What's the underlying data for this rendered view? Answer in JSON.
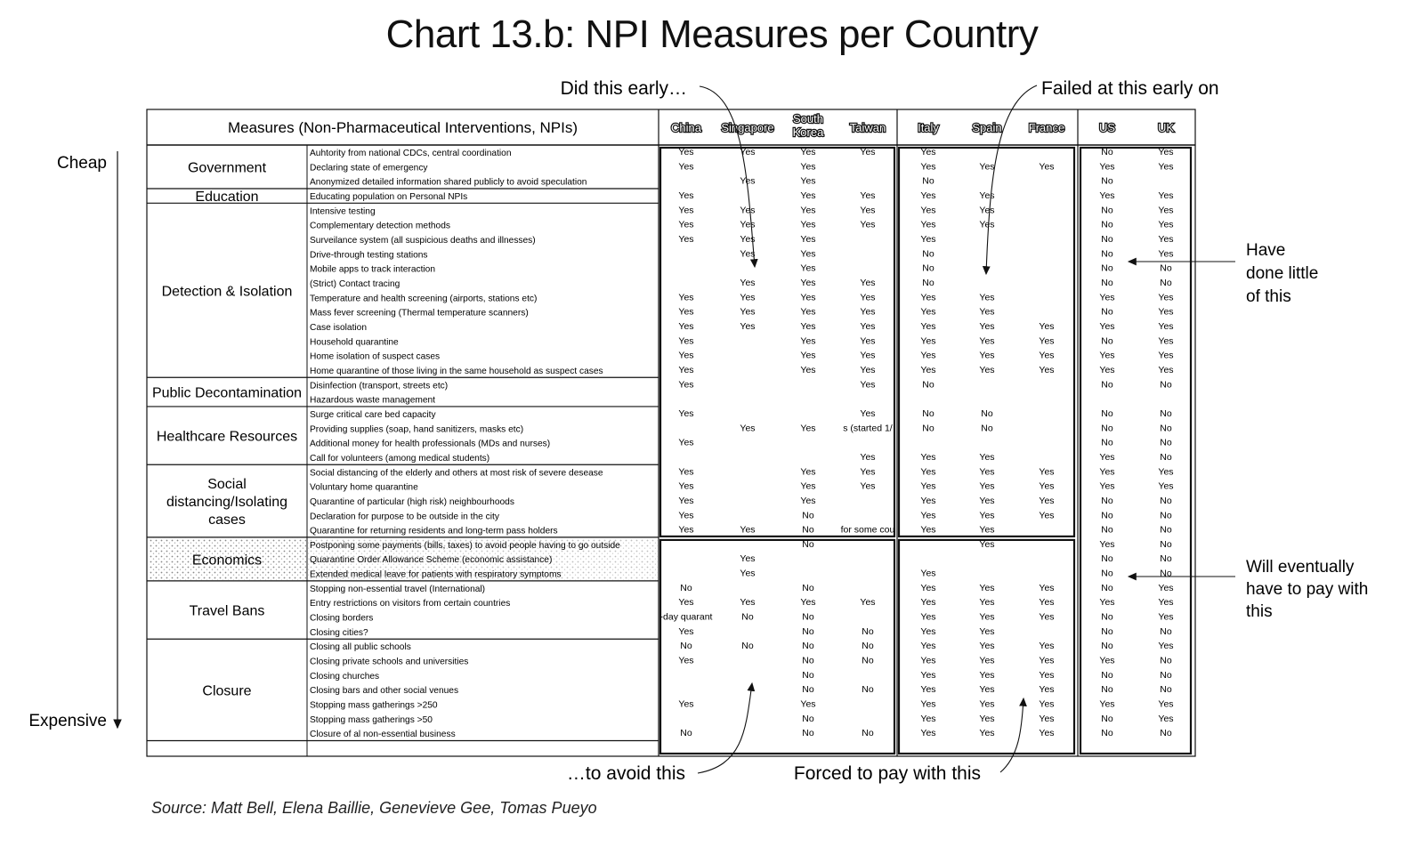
{
  "title": "Chart 13.b: NPI Measures per Country",
  "source": "Source: Matt Bell, Elena Baillie, Genevieve Gee, Tomas Pueyo",
  "axis": {
    "top": "Cheap",
    "bottom": "Expensive"
  },
  "annotations": {
    "did_early": "Did this early…",
    "failed_early": "Failed at this early on",
    "done_little": [
      "Have",
      "done little",
      "of this"
    ],
    "pay_with": [
      "Will eventually",
      "have to pay with",
      "this"
    ],
    "avoid_this": "…to avoid this",
    "forced_pay": "Forced to pay with this"
  },
  "chart_data": {
    "type": "table",
    "header_label": "Measures (Non-Pharmaceutical Interventions, NPIs)",
    "countries": [
      "China",
      "Singapore",
      "South Korea",
      "Taiwan",
      "Italy",
      "Spain",
      "France",
      "US",
      "UK"
    ],
    "groups": [
      {
        "name": "Government",
        "rows": [
          {
            "measure": "Auhtority from national CDCs, central coordination",
            "values": [
              "Yes",
              "Yes",
              "Yes",
              "Yes",
              "Yes",
              "",
              "",
              "No",
              "Yes"
            ]
          },
          {
            "measure": "Declaring state of emergency",
            "values": [
              "Yes",
              "",
              "Yes",
              "",
              "Yes",
              "Yes",
              "Yes",
              "Yes",
              "Yes"
            ]
          },
          {
            "measure": "Anonymized detailed information shared publicly to avoid speculation",
            "values": [
              "",
              "Yes",
              "Yes",
              "",
              "No",
              "",
              "",
              "No",
              ""
            ]
          }
        ]
      },
      {
        "name": "Education",
        "rows": [
          {
            "measure": "Educating population on Personal NPIs",
            "values": [
              "Yes",
              "",
              "Yes",
              "Yes",
              "Yes",
              "Yes",
              "",
              "Yes",
              "Yes"
            ]
          }
        ]
      },
      {
        "name": "Detection & Isolation",
        "rows": [
          {
            "measure": "Intensive testing",
            "values": [
              "Yes",
              "Yes",
              "Yes",
              "Yes",
              "Yes",
              "Yes",
              "",
              "No",
              "Yes"
            ]
          },
          {
            "measure": "Complementary detection methods",
            "values": [
              "Yes",
              "Yes",
              "Yes",
              "Yes",
              "Yes",
              "Yes",
              "",
              "No",
              "Yes"
            ]
          },
          {
            "measure": "Surveilance system (all suspicious deaths and illnesses)",
            "values": [
              "Yes",
              "Yes",
              "Yes",
              "",
              "Yes",
              "",
              "",
              "No",
              "Yes"
            ]
          },
          {
            "measure": "Drive-through testing stations",
            "values": [
              "",
              "Yes",
              "Yes",
              "",
              "No",
              "",
              "",
              "No",
              "Yes"
            ]
          },
          {
            "measure": "Mobile apps to track interaction",
            "values": [
              "",
              "",
              "Yes",
              "",
              "No",
              "",
              "",
              "No",
              "No"
            ]
          },
          {
            "measure": "(Strict) Contact tracing",
            "values": [
              "",
              "Yes",
              "Yes",
              "Yes",
              "No",
              "",
              "",
              "No",
              "No"
            ]
          },
          {
            "measure": "Temperature and health screening (airports, stations etc)",
            "values": [
              "Yes",
              "Yes",
              "Yes",
              "Yes",
              "Yes",
              "Yes",
              "",
              "Yes",
              "Yes"
            ]
          },
          {
            "measure": "Mass fever screening (Thermal temperature scanners)",
            "values": [
              "Yes",
              "Yes",
              "Yes",
              "Yes",
              "Yes",
              "Yes",
              "",
              "No",
              "Yes"
            ]
          },
          {
            "measure": "Case isolation",
            "values": [
              "Yes",
              "Yes",
              "Yes",
              "Yes",
              "Yes",
              "Yes",
              "Yes",
              "Yes",
              "Yes"
            ]
          },
          {
            "measure": "Household quarantine",
            "values": [
              "Yes",
              "",
              "Yes",
              "Yes",
              "Yes",
              "Yes",
              "Yes",
              "No",
              "Yes"
            ]
          },
          {
            "measure": "Home isolation of suspect cases",
            "values": [
              "Yes",
              "",
              "Yes",
              "Yes",
              "Yes",
              "Yes",
              "Yes",
              "Yes",
              "Yes"
            ]
          },
          {
            "measure": "Home quarantine of those living in the same household as suspect cases",
            "values": [
              "Yes",
              "",
              "Yes",
              "Yes",
              "Yes",
              "Yes",
              "Yes",
              "Yes",
              "Yes"
            ]
          }
        ]
      },
      {
        "name": "Public Decontamination",
        "rows": [
          {
            "measure": "Disinfection (transport, streets etc)",
            "values": [
              "Yes",
              "",
              "",
              "Yes",
              "No",
              "",
              "",
              "No",
              "No"
            ]
          },
          {
            "measure": "Hazardous waste management",
            "values": [
              "",
              "",
              "",
              "",
              "",
              "",
              "",
              "",
              ""
            ]
          }
        ]
      },
      {
        "name": "Healthcare Resources",
        "rows": [
          {
            "measure": "Surge critical care bed capacity",
            "values": [
              "Yes",
              "",
              "",
              "Yes",
              "No",
              "No",
              "",
              "No",
              "No"
            ]
          },
          {
            "measure": "Providing supplies (soap, hand sanitizers, masks etc)",
            "values": [
              "",
              "Yes",
              "Yes",
              "s (started 1/",
              "No",
              "No",
              "",
              "No",
              "No"
            ]
          },
          {
            "measure": "Additional money for health professionals (MDs and nurses)",
            "values": [
              "Yes",
              "",
              "",
              "",
              "",
              "",
              "",
              "No",
              "No"
            ]
          },
          {
            "measure": "Call for volunteers (among medical students)",
            "values": [
              "",
              "",
              "",
              "Yes",
              "Yes",
              "Yes",
              "",
              "Yes",
              "No"
            ]
          }
        ]
      },
      {
        "name": "Social distancing/Isolating cases",
        "rows": [
          {
            "measure": "Social distancing of the elderly and others at most risk of severe desease",
            "values": [
              "Yes",
              "",
              "Yes",
              "Yes",
              "Yes",
              "Yes",
              "Yes",
              "Yes",
              "Yes"
            ]
          },
          {
            "measure": "Voluntary home quarantine",
            "values": [
              "Yes",
              "",
              "Yes",
              "Yes",
              "Yes",
              "Yes",
              "Yes",
              "Yes",
              "Yes"
            ]
          },
          {
            "measure": "Quarantine of particular (high risk) neighbourhoods",
            "values": [
              "Yes",
              "",
              "Yes",
              "",
              "Yes",
              "Yes",
              "Yes",
              "No",
              "No"
            ]
          },
          {
            "measure": "Declaration for purpose to be outside in the city",
            "values": [
              "Yes",
              "",
              "No",
              "",
              "Yes",
              "Yes",
              "Yes",
              "No",
              "No"
            ]
          },
          {
            "measure": "Quarantine for returning residents and long-term pass holders",
            "values": [
              "Yes",
              "Yes",
              "No",
              "for some cou",
              "Yes",
              "Yes",
              "",
              "No",
              "No"
            ]
          }
        ]
      },
      {
        "name": "Economics",
        "rows": [
          {
            "measure": "Postponing some payments (bills, taxes) to avoid people having to go outside",
            "values": [
              "",
              "",
              "No",
              "",
              "",
              "Yes",
              "",
              "Yes",
              "No"
            ]
          },
          {
            "measure": "Quarantine Order Allowance Scheme (economic assistance)",
            "values": [
              "",
              "Yes",
              "",
              "",
              "",
              "",
              "",
              "No",
              "No"
            ]
          },
          {
            "measure": "Extended medical leave for patients with respiratory symptoms",
            "values": [
              "",
              "Yes",
              "",
              "",
              "Yes",
              "",
              "",
              "No",
              "No"
            ]
          }
        ]
      },
      {
        "name": "Travel Bans",
        "rows": [
          {
            "measure": "Stopping non-essential travel (International)",
            "values": [
              "No",
              "",
              "No",
              "",
              "Yes",
              "Yes",
              "Yes",
              "No",
              "Yes"
            ]
          },
          {
            "measure": "Entry restrictions on visitors from certain countries",
            "values": [
              "Yes",
              "Yes",
              "Yes",
              "Yes",
              "Yes",
              "Yes",
              "Yes",
              "Yes",
              "Yes"
            ]
          },
          {
            "measure": "Closing borders",
            "values": [
              "-day quarant",
              "No",
              "No",
              "",
              "Yes",
              "Yes",
              "Yes",
              "No",
              "Yes"
            ]
          },
          {
            "measure": "Closing cities?",
            "values": [
              "Yes",
              "",
              "No",
              "No",
              "Yes",
              "Yes",
              "",
              "No",
              "No"
            ]
          }
        ]
      },
      {
        "name": "Closure",
        "rows": [
          {
            "measure": "Closing all public schools",
            "values": [
              "No",
              "No",
              "No",
              "No",
              "Yes",
              "Yes",
              "Yes",
              "No",
              "Yes"
            ]
          },
          {
            "measure": "Closing private schools and universities",
            "values": [
              "Yes",
              "",
              "No",
              "No",
              "Yes",
              "Yes",
              "Yes",
              "Yes",
              "No"
            ]
          },
          {
            "measure": "Closing churches",
            "values": [
              "",
              "",
              "No",
              "",
              "Yes",
              "Yes",
              "Yes",
              "No",
              "No"
            ]
          },
          {
            "measure": "Closing bars and other social venues",
            "values": [
              "",
              "",
              "No",
              "No",
              "Yes",
              "Yes",
              "Yes",
              "No",
              "No"
            ]
          },
          {
            "measure": "Stopping mass gatherings >250",
            "values": [
              "Yes",
              "",
              "Yes",
              "",
              "Yes",
              "Yes",
              "Yes",
              "Yes",
              "Yes"
            ]
          },
          {
            "measure": "Stopping mass gatherings >50",
            "values": [
              "",
              "",
              "No",
              "",
              "Yes",
              "Yes",
              "Yes",
              "No",
              "Yes"
            ]
          },
          {
            "measure": "Closure of al non-essential business",
            "values": [
              "No",
              "",
              "No",
              "No",
              "Yes",
              "Yes",
              "Yes",
              "No",
              "No"
            ]
          }
        ]
      }
    ]
  }
}
